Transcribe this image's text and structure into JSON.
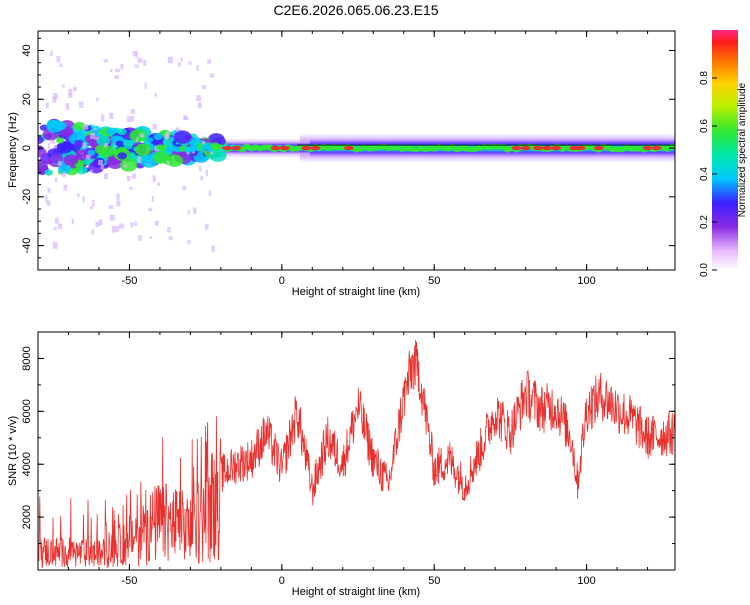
{
  "title": "C2E6.2026.065.06.23.E15",
  "colors": {
    "snr_line": "#e8312e",
    "frame": "#000000",
    "ridge_core": "#e8312e",
    "background": "#ffffff"
  },
  "chart_data": [
    {
      "type": "heatmap",
      "name": "spectrogram",
      "xlabel": "Height of straight line (km)",
      "ylabel": "Frequency (Hz)",
      "xlim": [
        -80,
        129
      ],
      "ylim": [
        -50,
        48
      ],
      "xticks": [
        -50,
        0,
        50,
        100
      ],
      "xtick_labels": [
        "-50",
        "0",
        "50",
        "100"
      ],
      "yticks": [
        -40,
        -20,
        0,
        20,
        40
      ],
      "ytick_labels": [
        "-40",
        "-20",
        "0",
        "20",
        "40"
      ],
      "ridge_frequency_hz": 0,
      "colorbar": {
        "label": "Normalized spectral amplitude",
        "range": [
          0,
          1
        ],
        "ticks": [
          0,
          0.2,
          0.4,
          0.6,
          0.8
        ],
        "tick_labels": [
          "0.0",
          "0.2",
          "0.4",
          "0.6",
          "0.8"
        ],
        "colormap": "rainbow"
      }
    },
    {
      "type": "line",
      "name": "snr",
      "xlabel": "Height of straight line (km)",
      "ylabel": "SNR (10 * v/v)",
      "xlim": [
        -80,
        129
      ],
      "ylim": [
        0,
        9000
      ],
      "xticks": [
        -50,
        0,
        50,
        100
      ],
      "xtick_labels": [
        "-50",
        "0",
        "50",
        "100"
      ],
      "yticks": [
        2000,
        4000,
        6000,
        8000
      ],
      "ytick_labels": [
        "2000",
        "4000",
        "6000",
        "8000"
      ],
      "envelope": {
        "x": [
          -80,
          -70,
          -60,
          -55,
          -50,
          -45,
          -40,
          -35,
          -30,
          -25,
          -22,
          -20,
          -15,
          -10,
          -5,
          0,
          5,
          10,
          15,
          20,
          25,
          30,
          35,
          40,
          43,
          45,
          50,
          55,
          60,
          65,
          70,
          75,
          80,
          85,
          90,
          95,
          97,
          100,
          105,
          110,
          115,
          120,
          125,
          129
        ],
        "y": [
          700,
          650,
          600,
          750,
          1200,
          1500,
          1800,
          1700,
          1500,
          2200,
          2600,
          3600,
          4000,
          4200,
          5200,
          3800,
          6000,
          3000,
          5000,
          4000,
          6200,
          4200,
          3200,
          6500,
          7800,
          7500,
          3800,
          4200,
          3200,
          4500,
          6000,
          5200,
          6700,
          6100,
          6200,
          5000,
          3300,
          6100,
          6600,
          6100,
          5700,
          5000,
          5100,
          5200
        ]
      }
    }
  ]
}
